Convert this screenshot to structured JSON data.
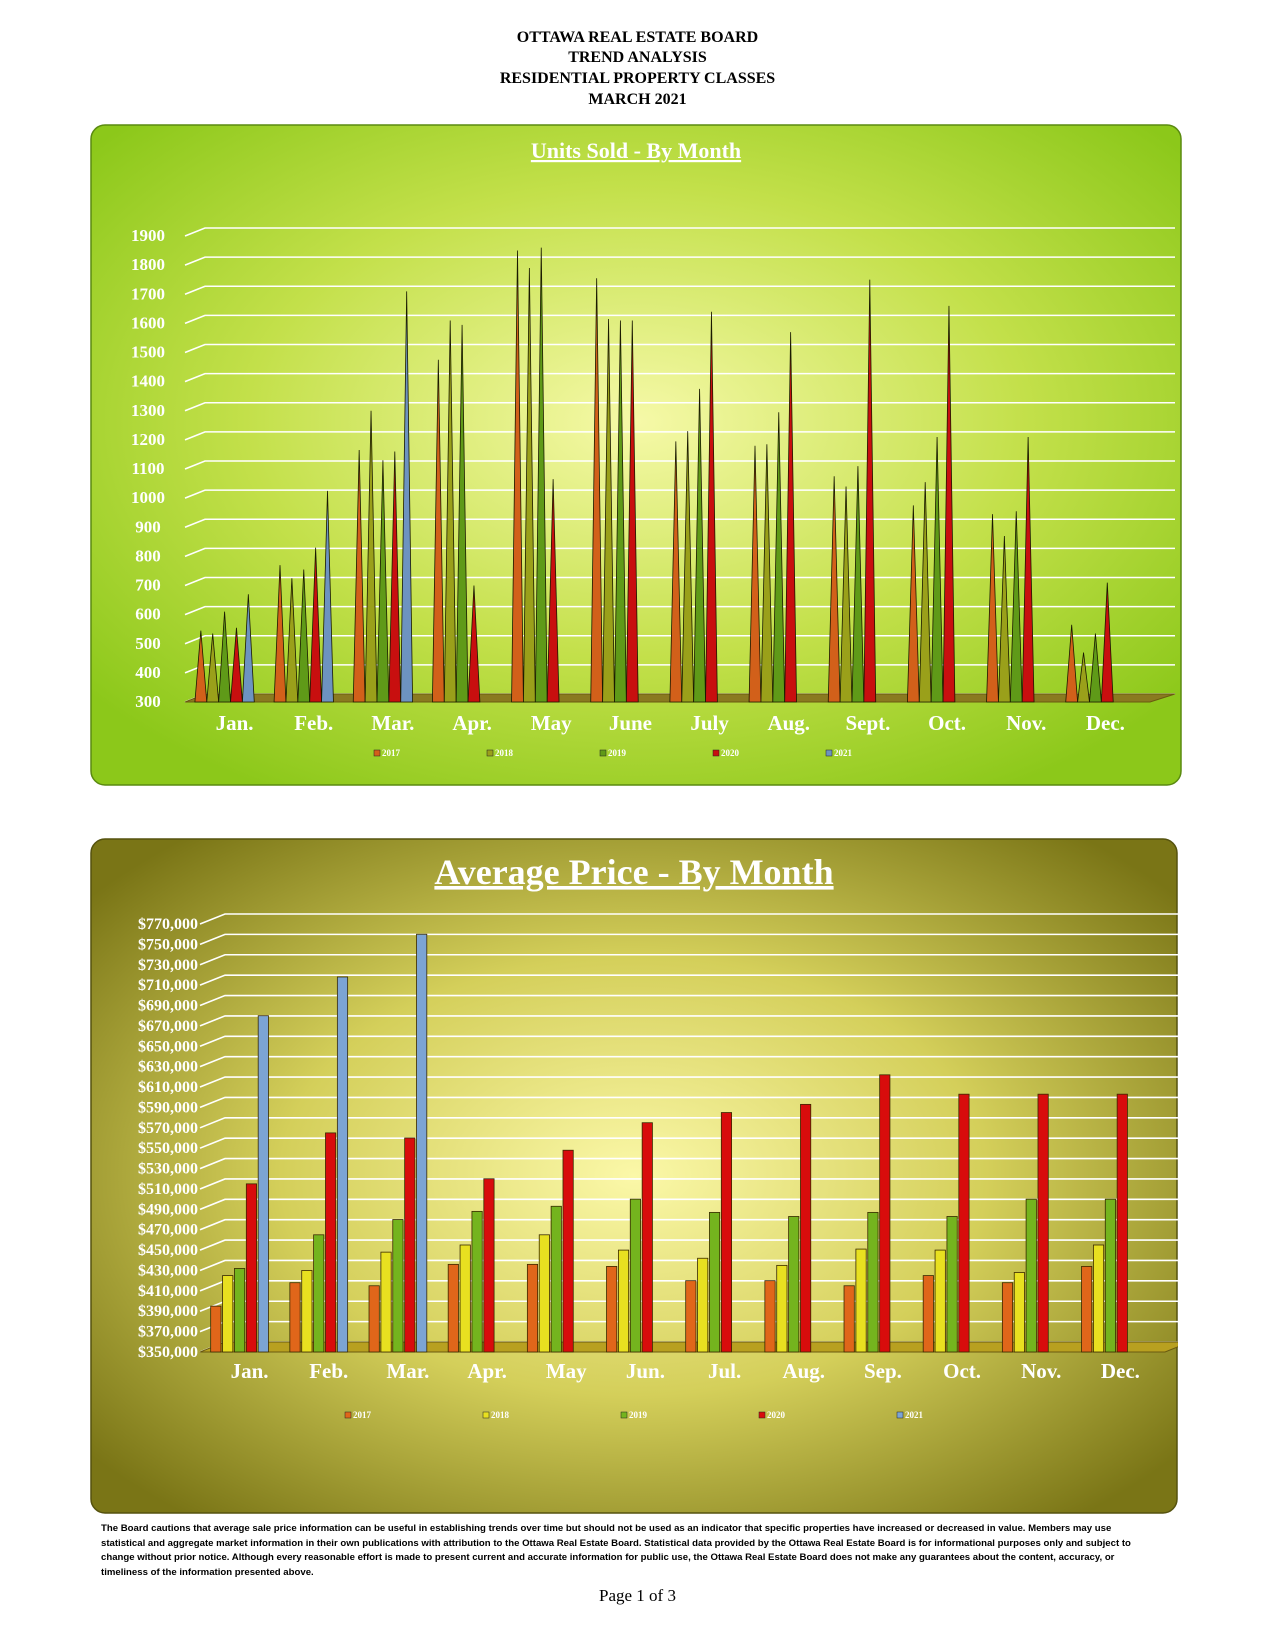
{
  "header": {
    "lines": [
      "OTTAWA REAL ESTATE BOARD",
      "TREND ANALYSIS",
      "RESIDENTIAL PROPERTY CLASSES",
      "MARCH 2021"
    ]
  },
  "chart_data": [
    {
      "type": "cone",
      "title": "Units Sold - By Month",
      "categories": [
        "Jan.",
        "Feb.",
        "Mar.",
        "Apr.",
        "May",
        "June",
        "July",
        "Aug.",
        "Sept.",
        "Oct.",
        "Nov.",
        "Dec."
      ],
      "series": [
        {
          "name": "2017",
          "color": "#d2601a",
          "values": [
            545,
            770,
            1165,
            1475,
            1850,
            1755,
            1195,
            1180,
            1075,
            975,
            945,
            565
          ]
        },
        {
          "name": "2018",
          "color": "#9aa01a",
          "values": [
            535,
            725,
            1300,
            1610,
            1790,
            1615,
            1230,
            1185,
            1040,
            1055,
            870,
            470
          ]
        },
        {
          "name": "2019",
          "color": "#5f9a18",
          "values": [
            610,
            755,
            1130,
            1595,
            1860,
            1610,
            1375,
            1295,
            1110,
            1210,
            955,
            535
          ]
        },
        {
          "name": "2020",
          "color": "#c80f0f",
          "values": [
            555,
            830,
            1160,
            700,
            1065,
            1610,
            1640,
            1570,
            1750,
            1660,
            1210,
            710
          ]
        },
        {
          "name": "2021",
          "color": "#6d93c0",
          "values": [
            670,
            1025,
            1710,
            null,
            null,
            null,
            null,
            null,
            null,
            null,
            null,
            null
          ]
        }
      ],
      "ylim": [
        300,
        1900
      ],
      "yticks": [
        300,
        400,
        500,
        600,
        700,
        800,
        900,
        1000,
        1100,
        1200,
        1300,
        1400,
        1500,
        1600,
        1700,
        1800,
        1900
      ],
      "grid": true
    },
    {
      "type": "bar",
      "title": "Average Price - By Month",
      "categories": [
        "Jan.",
        "Feb.",
        "Mar.",
        "Apr.",
        "May",
        "Jun.",
        "Jul.",
        "Aug.",
        "Sep.",
        "Oct.",
        "Nov.",
        "Dec."
      ],
      "series": [
        {
          "name": "2017",
          "color": "#e0661a",
          "values": [
            395000,
            418000,
            415000,
            436000,
            436000,
            434000,
            420000,
            420000,
            415000,
            425000,
            418000,
            434000
          ]
        },
        {
          "name": "2018",
          "color": "#e8e020",
          "values": [
            425000,
            430000,
            448000,
            455000,
            465000,
            450000,
            442000,
            435000,
            451000,
            450000,
            428000,
            455000
          ]
        },
        {
          "name": "2019",
          "color": "#74b41e",
          "values": [
            432000,
            465000,
            480000,
            488000,
            493000,
            500000,
            487000,
            483000,
            487000,
            483000,
            500000,
            500000
          ]
        },
        {
          "name": "2020",
          "color": "#d80c0c",
          "values": [
            515000,
            565000,
            560000,
            520000,
            548000,
            575000,
            585000,
            593000,
            622000,
            603000,
            603000,
            603000
          ]
        },
        {
          "name": "2021",
          "color": "#7ca4d4",
          "values": [
            680000,
            718000,
            760000,
            null,
            null,
            null,
            null,
            null,
            null,
            null,
            null,
            null
          ]
        }
      ],
      "ylim": [
        350000,
        770000
      ],
      "yticks": [
        {
          "value": 350000,
          "label": "$350,000"
        },
        {
          "value": 370000,
          "label": "$370,000"
        },
        {
          "value": 390000,
          "label": "$390,000"
        },
        {
          "value": 410000,
          "label": "$410,000"
        },
        {
          "value": 430000,
          "label": "$430,000"
        },
        {
          "value": 450000,
          "label": "$450,000"
        },
        {
          "value": 470000,
          "label": "$470,000"
        },
        {
          "value": 490000,
          "label": "$490,000"
        },
        {
          "value": 510000,
          "label": "$510,000"
        },
        {
          "value": 530000,
          "label": "$530,000"
        },
        {
          "value": 550000,
          "label": "$550,000"
        },
        {
          "value": 570000,
          "label": "$570,000"
        },
        {
          "value": 590000,
          "label": "$590,000"
        },
        {
          "value": 610000,
          "label": "$610,000"
        },
        {
          "value": 630000,
          "label": "$630,000"
        },
        {
          "value": 650000,
          "label": "$650,000"
        },
        {
          "value": 670000,
          "label": "$670,000"
        },
        {
          "value": 690000,
          "label": "$690,000"
        },
        {
          "value": 710000,
          "label": "$710,000"
        },
        {
          "value": 730000,
          "label": "$730,000"
        },
        {
          "value": 750000,
          "label": "$750,000"
        },
        {
          "value": 770000,
          "label": "$770,000"
        }
      ],
      "grid": true
    }
  ],
  "disclaimer": "The Board cautions that average sale price information can be useful in establishing trends over time but should not be used as an indicator that specific properties have increased or decreased in value. Members may use statistical and aggregate market information in their own publications with attribution to the Ottawa Real Estate Board. Statistical data provided by the Ottawa Real Estate Board is for informational purposes only and subject to change without prior notice. Although every reasonable effort is made to present current and accurate information for public use, the Ottawa Real Estate Board does not make any guarantees about the content, accuracy, or timeliness of the information presented above.",
  "page_number": "Page 1 of 3"
}
